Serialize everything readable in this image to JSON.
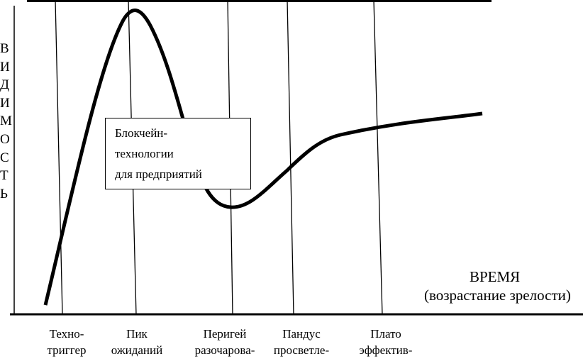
{
  "y_axis_label": [
    "В",
    "И",
    "Д",
    "И",
    "М",
    "О",
    "С",
    "Т",
    "Ь"
  ],
  "x_axis_title": "ВРЕМЯ",
  "x_axis_subtitle": "(возрастание зрелости)",
  "phases": [
    {
      "line1": "Техно-",
      "line2": "триггер"
    },
    {
      "line1": "Пик",
      "line2": "ожиданий"
    },
    {
      "line1": "Перигей",
      "line2": "разочарова-"
    },
    {
      "line1": "Пандус",
      "line2": "просветле-"
    },
    {
      "line1": "Плато",
      "line2": "эффектив-"
    }
  ],
  "callout": {
    "line1": "Блокчейн-",
    "line2": "технологии",
    "line3": "для предприятий"
  }
}
